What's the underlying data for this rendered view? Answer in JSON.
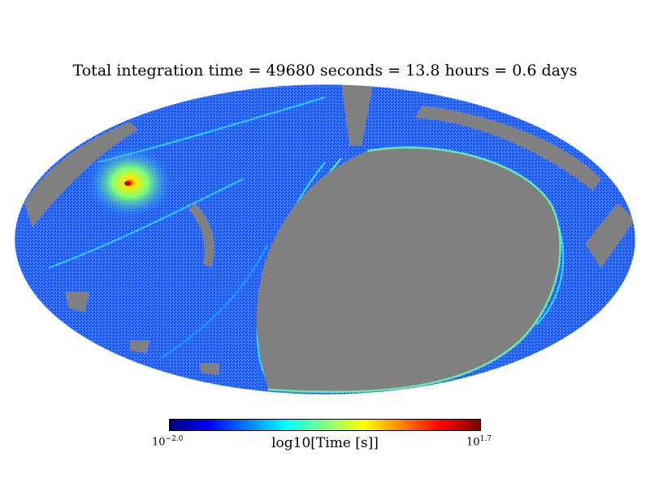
{
  "chart_data": {
    "type": "heatmap",
    "projection": "mollweide",
    "title": "Total integration time = 49680 seconds = 13.8 hours = 0.6 days",
    "colorbar": {
      "label": "log10[Time [s]]",
      "min_label": {
        "base": "10",
        "exp": "−2.0"
      },
      "max_label": {
        "base": "10",
        "exp": "1.7"
      },
      "vmin_log10": -2.0,
      "vmax_log10": 1.7,
      "colormap": "jet"
    },
    "no_data_color": "#808080",
    "regions": [
      {
        "name": "unobserved-large-region",
        "value": null
      },
      {
        "name": "hotspot",
        "lon_deg": 110,
        "lat_deg": 20,
        "value_log10": 1.7
      },
      {
        "name": "survey-coverage",
        "value_log10_typical": -0.8
      }
    ]
  }
}
